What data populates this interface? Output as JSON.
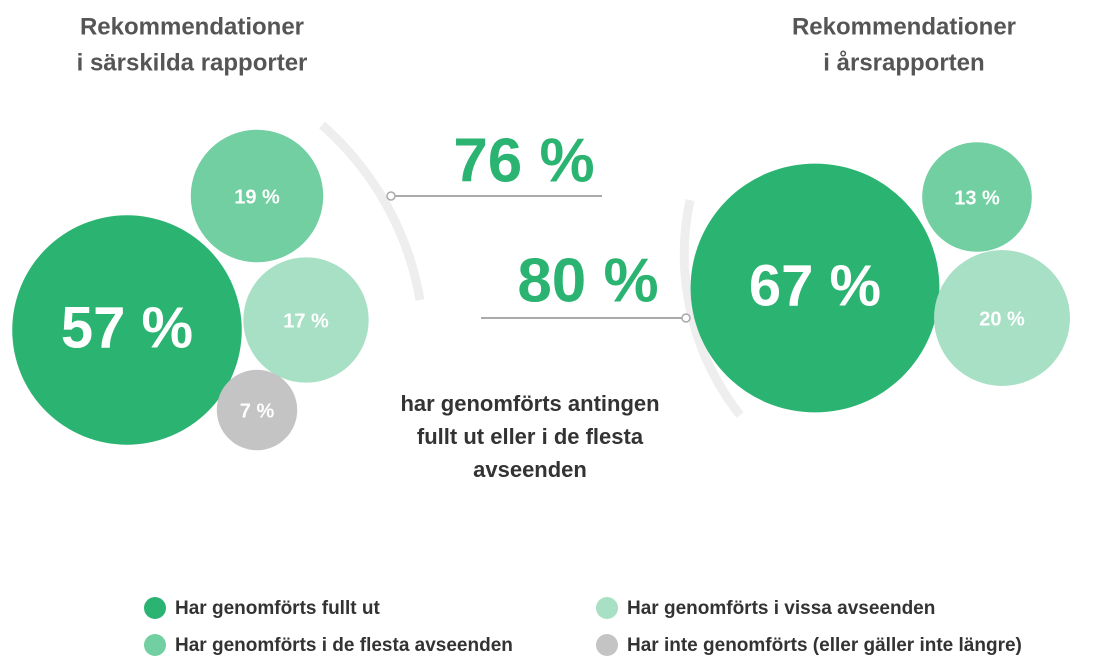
{
  "chart_data": [
    {
      "type": "bubble",
      "title": [
        "Rekommendationer",
        "i särskilda rapporter"
      ],
      "values": [
        57,
        19,
        17,
        7
      ],
      "value_labels": [
        "57 %",
        "19 %",
        "17 %",
        "7 %"
      ],
      "total": 76,
      "total_label": "76 %"
    },
    {
      "type": "bubble",
      "title": [
        "Rekommendationer",
        "i årsrapporten"
      ],
      "values": [
        67,
        13,
        20
      ],
      "value_labels": [
        "67 %",
        "13 %",
        "20 %"
      ],
      "total": 80,
      "total_label": "80 %"
    }
  ],
  "caption": [
    "har genomförts antingen",
    "fullt ut eller i de flesta",
    "avseenden"
  ],
  "legend": [
    {
      "name": "Har genomförts fullt ut",
      "color": "#2bb371"
    },
    {
      "name": "Har genomförts i de flesta avseenden",
      "color": "#72cfa2"
    },
    {
      "name": "Har genomförts i vissa avseenden",
      "color": "#a8e0c5"
    },
    {
      "name": "Har inte genomförts (eller gäller inte längre)",
      "color": "#c4c4c4"
    }
  ]
}
